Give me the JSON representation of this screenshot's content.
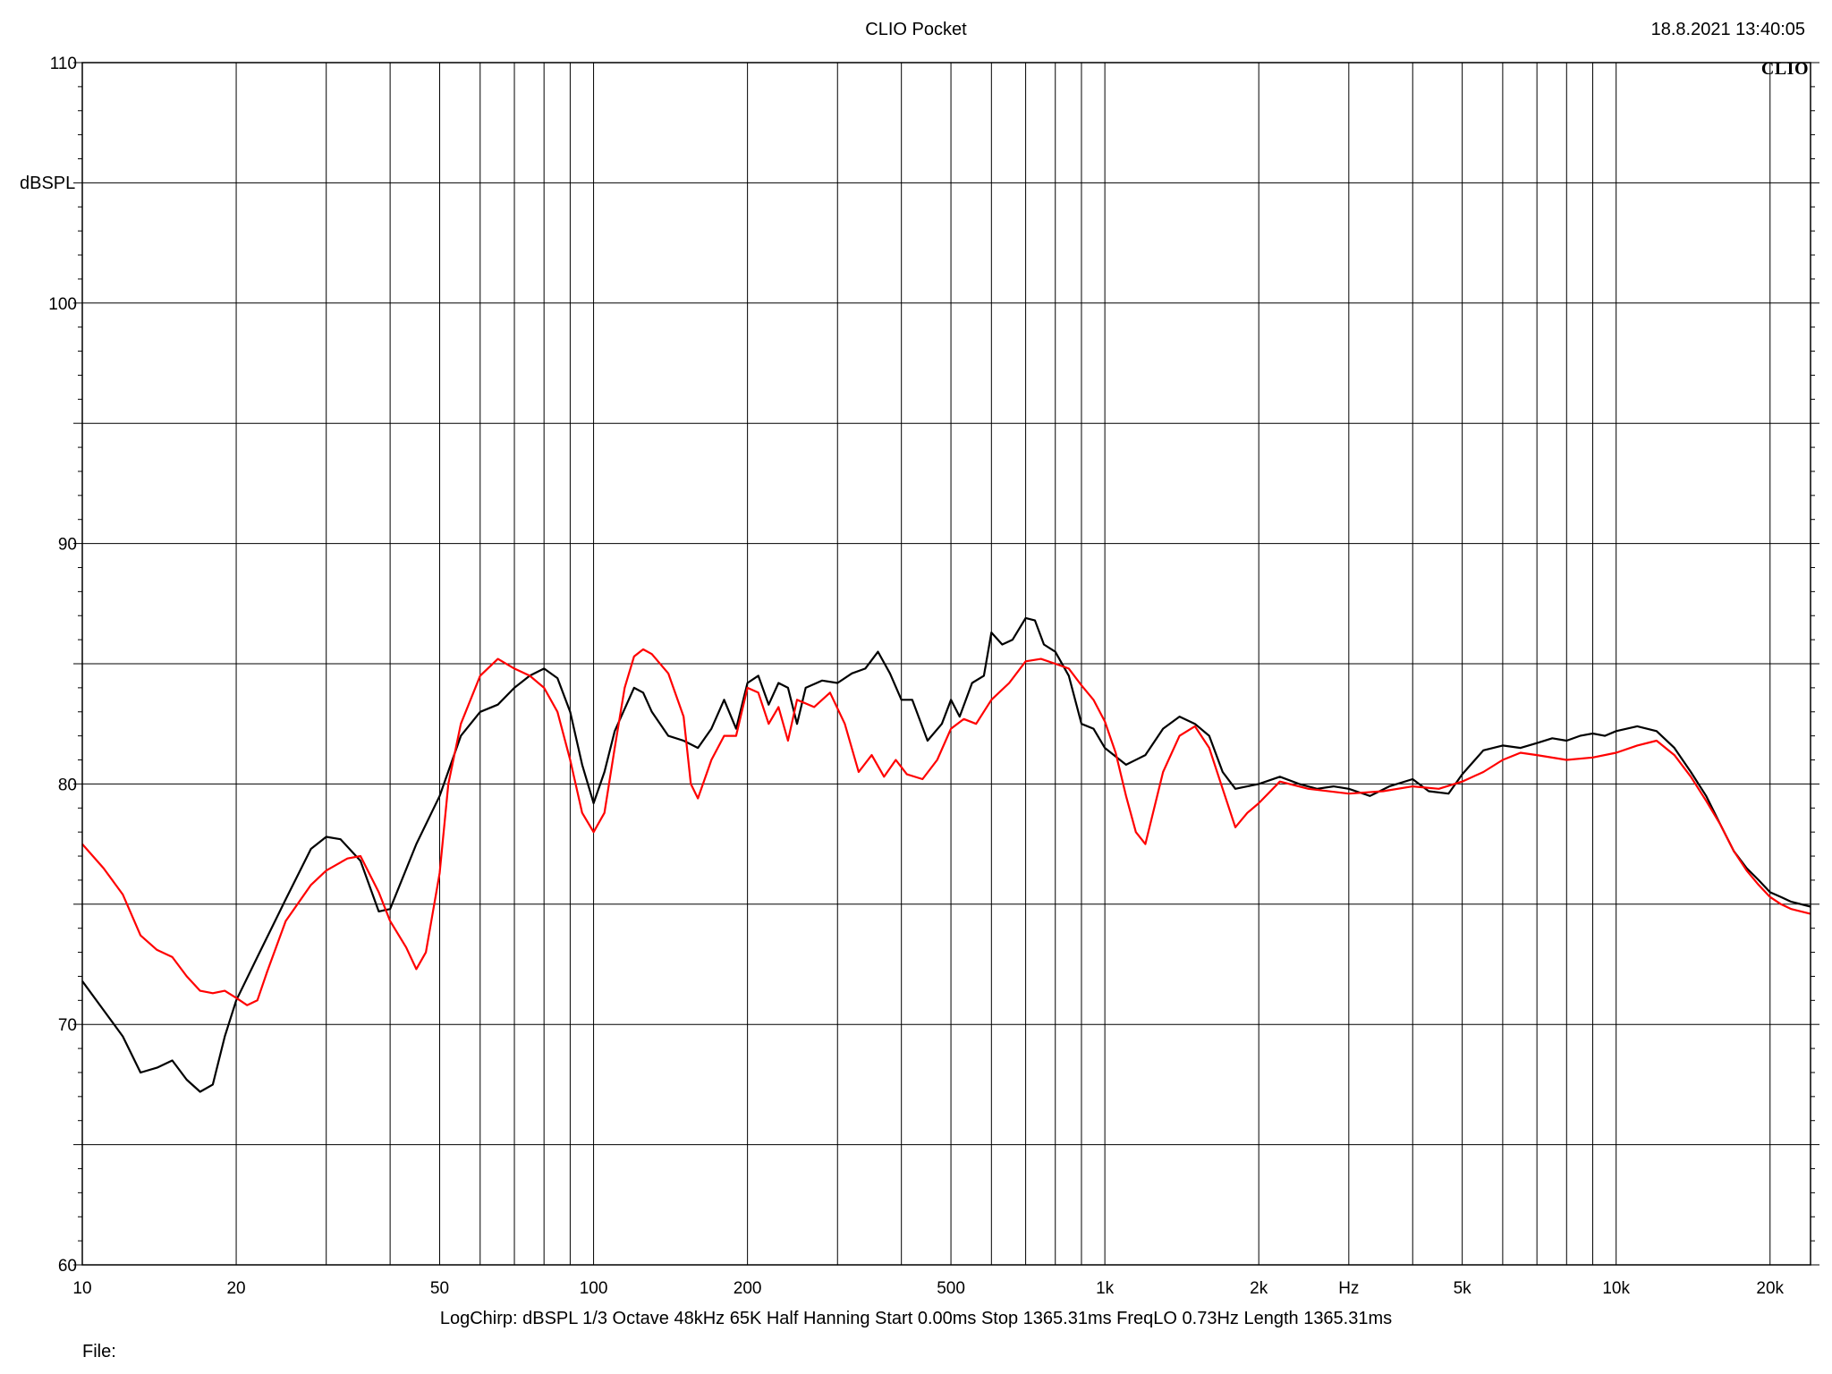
{
  "header": {
    "title": "CLIO Pocket",
    "timestamp": "18.8.2021 13:40:05",
    "brand": "CLIO"
  },
  "footer": {
    "settings": "LogChirp:   dBSPL   1/3 Octave   48kHz   65K   Half Hanning   Start 0.00ms   Stop 1365.31ms   FreqLO 0.73Hz   Length 1365.31ms",
    "file_label": "File:"
  },
  "chart_data": {
    "type": "line",
    "title": "CLIO Pocket",
    "xlabel": "Hz",
    "ylabel": "dBSPL",
    "xscale": "log",
    "xlim": [
      10,
      24000
    ],
    "ylim": [
      60,
      110
    ],
    "grid": true,
    "x_ticks": [
      {
        "value": 10,
        "label": "10"
      },
      {
        "value": 20,
        "label": "20"
      },
      {
        "value": 50,
        "label": "50"
      },
      {
        "value": 100,
        "label": "100"
      },
      {
        "value": 200,
        "label": "200"
      },
      {
        "value": 500,
        "label": "500"
      },
      {
        "value": 1000,
        "label": "1k"
      },
      {
        "value": 2000,
        "label": "2k"
      },
      {
        "value": 5000,
        "label": "5k"
      },
      {
        "value": 10000,
        "label": "10k"
      },
      {
        "value": 20000,
        "label": "20k"
      }
    ],
    "x_unit_label": "Hz",
    "x_unit_at": 3000,
    "y_ticks": [
      {
        "value": 60,
        "label": "60"
      },
      {
        "value": 70,
        "label": "70"
      },
      {
        "value": 80,
        "label": "80"
      },
      {
        "value": 90,
        "label": "90"
      },
      {
        "value": 100,
        "label": "100"
      },
      {
        "value": 110,
        "label": "110"
      }
    ],
    "y_minor_step": 5,
    "series": [
      {
        "color": "#000000",
        "points": [
          [
            10,
            71.8
          ],
          [
            11,
            70.6
          ],
          [
            12,
            69.5
          ],
          [
            13,
            68.0
          ],
          [
            14,
            68.2
          ],
          [
            15,
            68.5
          ],
          [
            16,
            67.7
          ],
          [
            17,
            67.2
          ],
          [
            18,
            67.5
          ],
          [
            19,
            69.5
          ],
          [
            20,
            71.0
          ],
          [
            22,
            72.8
          ],
          [
            25,
            75.2
          ],
          [
            28,
            77.3
          ],
          [
            30,
            77.8
          ],
          [
            32,
            77.7
          ],
          [
            35,
            76.8
          ],
          [
            38,
            74.7
          ],
          [
            40,
            74.8
          ],
          [
            45,
            77.5
          ],
          [
            50,
            79.5
          ],
          [
            55,
            82.0
          ],
          [
            60,
            83.0
          ],
          [
            65,
            83.3
          ],
          [
            70,
            84.0
          ],
          [
            75,
            84.5
          ],
          [
            80,
            84.8
          ],
          [
            85,
            84.4
          ],
          [
            90,
            83.0
          ],
          [
            95,
            80.8
          ],
          [
            100,
            79.2
          ],
          [
            105,
            80.5
          ],
          [
            110,
            82.2
          ],
          [
            120,
            84.0
          ],
          [
            125,
            83.8
          ],
          [
            130,
            83.0
          ],
          [
            140,
            82.0
          ],
          [
            150,
            81.8
          ],
          [
            160,
            81.5
          ],
          [
            170,
            82.3
          ],
          [
            180,
            83.5
          ],
          [
            190,
            82.3
          ],
          [
            200,
            84.2
          ],
          [
            210,
            84.5
          ],
          [
            220,
            83.3
          ],
          [
            230,
            84.2
          ],
          [
            240,
            84.0
          ],
          [
            250,
            82.5
          ],
          [
            260,
            84.0
          ],
          [
            280,
            84.3
          ],
          [
            300,
            84.2
          ],
          [
            320,
            84.6
          ],
          [
            340,
            84.8
          ],
          [
            360,
            85.5
          ],
          [
            380,
            84.6
          ],
          [
            400,
            83.5
          ],
          [
            420,
            83.5
          ],
          [
            450,
            81.8
          ],
          [
            480,
            82.5
          ],
          [
            500,
            83.5
          ],
          [
            520,
            82.8
          ],
          [
            550,
            84.2
          ],
          [
            580,
            84.5
          ],
          [
            600,
            86.3
          ],
          [
            630,
            85.8
          ],
          [
            660,
            86.0
          ],
          [
            700,
            86.9
          ],
          [
            730,
            86.8
          ],
          [
            760,
            85.8
          ],
          [
            800,
            85.5
          ],
          [
            850,
            84.5
          ],
          [
            900,
            82.5
          ],
          [
            950,
            82.3
          ],
          [
            1000,
            81.5
          ],
          [
            1100,
            80.8
          ],
          [
            1200,
            81.2
          ],
          [
            1300,
            82.3
          ],
          [
            1400,
            82.8
          ],
          [
            1500,
            82.5
          ],
          [
            1600,
            82.0
          ],
          [
            1700,
            80.5
          ],
          [
            1800,
            79.8
          ],
          [
            1900,
            79.9
          ],
          [
            2000,
            80.0
          ],
          [
            2200,
            80.3
          ],
          [
            2400,
            80.0
          ],
          [
            2600,
            79.8
          ],
          [
            2800,
            79.9
          ],
          [
            3000,
            79.8
          ],
          [
            3300,
            79.5
          ],
          [
            3600,
            79.9
          ],
          [
            4000,
            80.2
          ],
          [
            4300,
            79.7
          ],
          [
            4700,
            79.6
          ],
          [
            5000,
            80.4
          ],
          [
            5500,
            81.4
          ],
          [
            6000,
            81.6
          ],
          [
            6500,
            81.5
          ],
          [
            7000,
            81.7
          ],
          [
            7500,
            81.9
          ],
          [
            8000,
            81.8
          ],
          [
            8500,
            82.0
          ],
          [
            9000,
            82.1
          ],
          [
            9500,
            82.0
          ],
          [
            10000,
            82.2
          ],
          [
            11000,
            82.4
          ],
          [
            12000,
            82.2
          ],
          [
            13000,
            81.5
          ],
          [
            14000,
            80.5
          ],
          [
            15000,
            79.5
          ],
          [
            16000,
            78.3
          ],
          [
            17000,
            77.2
          ],
          [
            18000,
            76.5
          ],
          [
            19000,
            76.0
          ],
          [
            20000,
            75.5
          ],
          [
            21000,
            75.3
          ],
          [
            22000,
            75.1
          ],
          [
            24000,
            74.9
          ]
        ]
      },
      {
        "color": "#ff0000",
        "points": [
          [
            10,
            77.5
          ],
          [
            11,
            76.5
          ],
          [
            12,
            75.4
          ],
          [
            13,
            73.7
          ],
          [
            14,
            73.1
          ],
          [
            15,
            72.8
          ],
          [
            16,
            72.0
          ],
          [
            17,
            71.4
          ],
          [
            18,
            71.3
          ],
          [
            19,
            71.4
          ],
          [
            20,
            71.1
          ],
          [
            21,
            70.8
          ],
          [
            22,
            71.0
          ],
          [
            23,
            72.2
          ],
          [
            25,
            74.3
          ],
          [
            28,
            75.8
          ],
          [
            30,
            76.4
          ],
          [
            33,
            76.9
          ],
          [
            35,
            77.0
          ],
          [
            38,
            75.5
          ],
          [
            40,
            74.3
          ],
          [
            43,
            73.2
          ],
          [
            45,
            72.3
          ],
          [
            47,
            73.0
          ],
          [
            50,
            76.3
          ],
          [
            52,
            80.0
          ],
          [
            55,
            82.5
          ],
          [
            60,
            84.5
          ],
          [
            65,
            85.2
          ],
          [
            70,
            84.8
          ],
          [
            75,
            84.5
          ],
          [
            80,
            84.0
          ],
          [
            85,
            83.0
          ],
          [
            90,
            81.0
          ],
          [
            95,
            78.8
          ],
          [
            100,
            78.0
          ],
          [
            105,
            78.8
          ],
          [
            110,
            81.5
          ],
          [
            115,
            84.0
          ],
          [
            120,
            85.3
          ],
          [
            125,
            85.6
          ],
          [
            130,
            85.4
          ],
          [
            140,
            84.6
          ],
          [
            150,
            82.8
          ],
          [
            155,
            80.0
          ],
          [
            160,
            79.4
          ],
          [
            170,
            81.0
          ],
          [
            180,
            82.0
          ],
          [
            190,
            82.0
          ],
          [
            200,
            84.0
          ],
          [
            210,
            83.8
          ],
          [
            220,
            82.5
          ],
          [
            230,
            83.2
          ],
          [
            240,
            81.8
          ],
          [
            250,
            83.5
          ],
          [
            270,
            83.2
          ],
          [
            290,
            83.8
          ],
          [
            310,
            82.5
          ],
          [
            330,
            80.5
          ],
          [
            350,
            81.2
          ],
          [
            370,
            80.3
          ],
          [
            390,
            81.0
          ],
          [
            410,
            80.4
          ],
          [
            440,
            80.2
          ],
          [
            470,
            81.0
          ],
          [
            500,
            82.3
          ],
          [
            530,
            82.7
          ],
          [
            560,
            82.5
          ],
          [
            600,
            83.5
          ],
          [
            650,
            84.2
          ],
          [
            700,
            85.1
          ],
          [
            750,
            85.2
          ],
          [
            800,
            85.0
          ],
          [
            850,
            84.8
          ],
          [
            900,
            84.1
          ],
          [
            950,
            83.5
          ],
          [
            1000,
            82.6
          ],
          [
            1050,
            81.3
          ],
          [
            1100,
            79.5
          ],
          [
            1150,
            78.0
          ],
          [
            1200,
            77.5
          ],
          [
            1300,
            80.5
          ],
          [
            1400,
            82.0
          ],
          [
            1500,
            82.4
          ],
          [
            1600,
            81.5
          ],
          [
            1700,
            79.8
          ],
          [
            1800,
            78.2
          ],
          [
            1900,
            78.8
          ],
          [
            2000,
            79.2
          ],
          [
            2200,
            80.1
          ],
          [
            2500,
            79.8
          ],
          [
            3000,
            79.6
          ],
          [
            3500,
            79.7
          ],
          [
            4000,
            79.9
          ],
          [
            4500,
            79.8
          ],
          [
            5000,
            80.1
          ],
          [
            5500,
            80.5
          ],
          [
            6000,
            81.0
          ],
          [
            6500,
            81.3
          ],
          [
            7000,
            81.2
          ],
          [
            8000,
            81.0
          ],
          [
            9000,
            81.1
          ],
          [
            10000,
            81.3
          ],
          [
            11000,
            81.6
          ],
          [
            12000,
            81.8
          ],
          [
            13000,
            81.2
          ],
          [
            14000,
            80.3
          ],
          [
            15000,
            79.3
          ],
          [
            16000,
            78.3
          ],
          [
            17000,
            77.2
          ],
          [
            18000,
            76.4
          ],
          [
            19000,
            75.8
          ],
          [
            20000,
            75.3
          ],
          [
            21000,
            75.0
          ],
          [
            22000,
            74.8
          ],
          [
            24000,
            74.6
          ]
        ]
      }
    ]
  }
}
